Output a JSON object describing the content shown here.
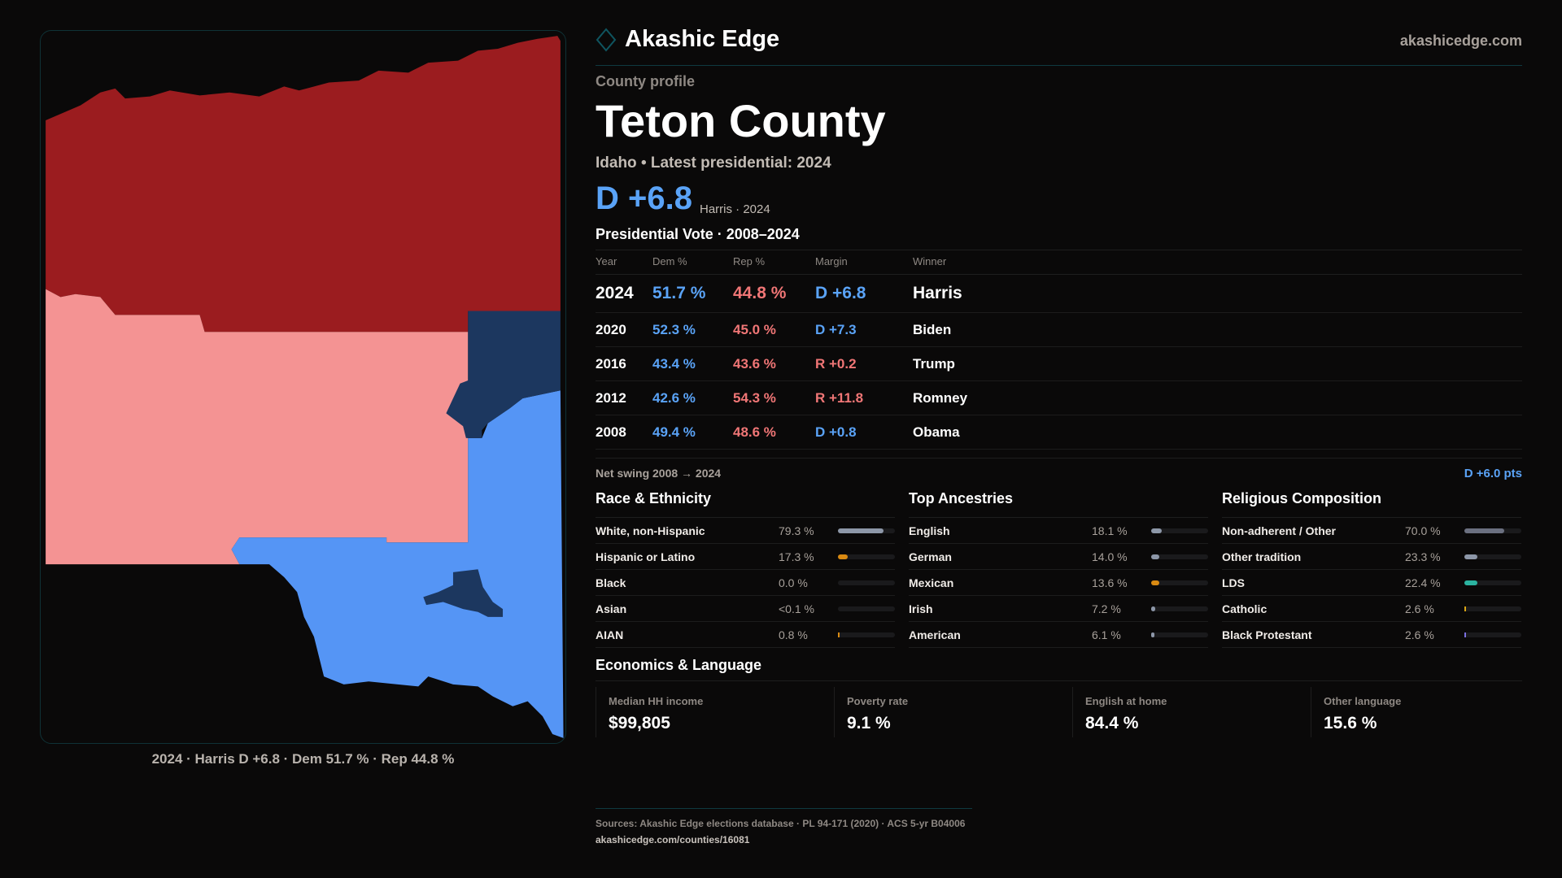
{
  "brand": {
    "name": "Akashic Edge",
    "site": "akashicedge.com"
  },
  "profile": {
    "eyebrow": "County profile",
    "title": "Teton County",
    "subtitle": "Idaho • Latest presidential: 2024",
    "margin": "D +6.8",
    "margin_sub": "Harris · 2024"
  },
  "map": {
    "caption": "2024 · Harris D +6.8 · Dem 51.7 % · Rep 44.8 %",
    "colors": {
      "strong_rep": "#9b1c1f",
      "lean_rep": "#f49393",
      "lean_dem": "#5595f5",
      "strong_dem": "#1c375f"
    }
  },
  "vote": {
    "heading": "Presidential Vote · 2008–2024",
    "columns": [
      "Year",
      "Dem %",
      "Rep %",
      "Margin",
      "Winner"
    ],
    "rows": [
      {
        "year": "2024",
        "dem": "51.7 %",
        "rep": "44.8 %",
        "margin": "D +6.8",
        "party": "D",
        "winner": "Harris"
      },
      {
        "year": "2020",
        "dem": "52.3 %",
        "rep": "45.0 %",
        "margin": "D +7.3",
        "party": "D",
        "winner": "Biden"
      },
      {
        "year": "2016",
        "dem": "43.4 %",
        "rep": "43.6 %",
        "margin": "R +0.2",
        "party": "R",
        "winner": "Trump"
      },
      {
        "year": "2012",
        "dem": "42.6 %",
        "rep": "54.3 %",
        "margin": "R +11.8",
        "party": "R",
        "winner": "Romney"
      },
      {
        "year": "2008",
        "dem": "49.4 %",
        "rep": "48.6 %",
        "margin": "D +0.8",
        "party": "D",
        "winner": "Obama"
      }
    ],
    "swing_label": "Net swing 2008 → 2024",
    "swing_value": "D +6.0 pts"
  },
  "demographics": [
    {
      "heading": "Race & Ethnicity",
      "items": [
        {
          "label": "White, non-Hispanic",
          "pct": "79.3 %",
          "value": 79.3,
          "color": "#8d97a8"
        },
        {
          "label": "Hispanic or Latino",
          "pct": "17.3 %",
          "value": 17.3,
          "color": "#d98a12"
        },
        {
          "label": "Black",
          "pct": "0.0 %",
          "value": 0,
          "color": "#8d97a8"
        },
        {
          "label": "Asian",
          "pct": "<0.1 %",
          "value": 0,
          "color": "#8d97a8"
        },
        {
          "label": "AIAN",
          "pct": "0.8 %",
          "value": 0.8,
          "color": "#d98a12"
        }
      ]
    },
    {
      "heading": "Top Ancestries",
      "items": [
        {
          "label": "English",
          "pct": "18.1 %",
          "value": 18.1,
          "color": "#8d97a8"
        },
        {
          "label": "German",
          "pct": "14.0 %",
          "value": 14.0,
          "color": "#8d97a8"
        },
        {
          "label": "Mexican",
          "pct": "13.6 %",
          "value": 13.6,
          "color": "#d98a12"
        },
        {
          "label": "Irish",
          "pct": "7.2 %",
          "value": 7.2,
          "color": "#8d97a8"
        },
        {
          "label": "American",
          "pct": "6.1 %",
          "value": 6.1,
          "color": "#8d97a8"
        }
      ]
    },
    {
      "heading": "Religious Composition",
      "items": [
        {
          "label": "Non-adherent / Other",
          "pct": "70.0 %",
          "value": 70.0,
          "color": "#6b7080"
        },
        {
          "label": "Other tradition",
          "pct": "23.3 %",
          "value": 23.3,
          "color": "#8d97a8"
        },
        {
          "label": "LDS",
          "pct": "22.4 %",
          "value": 22.4,
          "color": "#2bb3a0"
        },
        {
          "label": "Catholic",
          "pct": "2.6 %",
          "value": 2.6,
          "color": "#d9a514"
        },
        {
          "label": "Black Protestant",
          "pct": "2.6 %",
          "value": 2.6,
          "color": "#7a6fe0"
        }
      ]
    }
  ],
  "economics": {
    "heading": "Economics & Language",
    "stats": [
      {
        "label": "Median HH income",
        "value": "$99,805"
      },
      {
        "label": "Poverty rate",
        "value": "9.1 %"
      },
      {
        "label": "English at home",
        "value": "84.4 %"
      },
      {
        "label": "Other language",
        "value": "15.6 %"
      }
    ]
  },
  "footer": {
    "sources": "Sources: Akashic Edge elections database · PL 94-171 (2020) · ACS 5-yr B04006",
    "url": "akashicedge.com/counties/16081"
  }
}
